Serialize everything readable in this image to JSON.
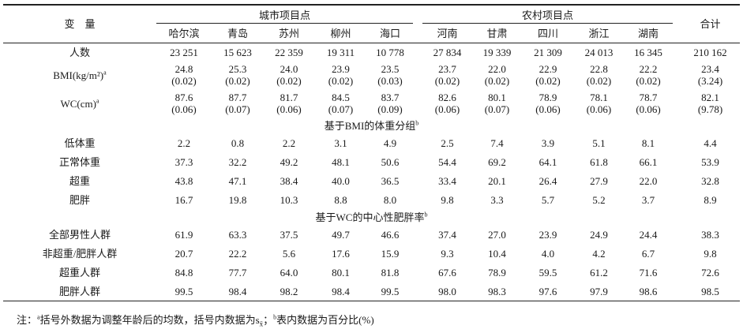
{
  "table": {
    "header": {
      "variable": "变　量",
      "urban_group": "城市项目点",
      "rural_group": "农村项目点",
      "total": "合计",
      "sites": [
        "哈尔滨",
        "青岛",
        "苏州",
        "柳州",
        "海口",
        "河南",
        "甘肃",
        "四川",
        "浙江",
        "湖南"
      ]
    },
    "rows": [
      {
        "type": "single",
        "label": "人数",
        "sup": "",
        "values": [
          "23 251",
          "15 623",
          "22 359",
          "19 311",
          "10 778",
          "27 834",
          "19 339",
          "21 309",
          "24 013",
          "16 345",
          "210 162"
        ]
      },
      {
        "type": "double",
        "label": "BMI(kg/m²)",
        "sup": "a",
        "values": [
          "24.8",
          "25.3",
          "24.0",
          "23.9",
          "23.5",
          "23.7",
          "22.0",
          "22.9",
          "22.8",
          "22.2",
          "23.4"
        ],
        "errors": [
          "(0.02)",
          "(0.02)",
          "(0.02)",
          "(0.02)",
          "(0.03)",
          "(0.02)",
          "(0.02)",
          "(0.02)",
          "(0.02)",
          "(0.02)",
          "(3.24)"
        ]
      },
      {
        "type": "double",
        "label": "WC(cm)",
        "sup": "a",
        "values": [
          "87.6",
          "87.7",
          "81.7",
          "84.5",
          "83.7",
          "82.6",
          "80.1",
          "78.9",
          "78.1",
          "78.7",
          "82.1"
        ],
        "errors": [
          "(0.06)",
          "(0.07)",
          "(0.06)",
          "(0.07)",
          "(0.09)",
          "(0.06)",
          "(0.07)",
          "(0.06)",
          "(0.06)",
          "(0.06)",
          "(9.78)"
        ]
      },
      {
        "type": "group",
        "label": "基于BMI的体重分组",
        "sup": "b"
      },
      {
        "type": "sub",
        "label": "低体重",
        "values": [
          "2.2",
          "0.8",
          "2.2",
          "3.1",
          "4.9",
          "2.5",
          "7.4",
          "3.9",
          "5.1",
          "8.1",
          "4.4"
        ]
      },
      {
        "type": "sub",
        "label": "正常体重",
        "values": [
          "37.3",
          "32.2",
          "49.2",
          "48.1",
          "50.6",
          "54.4",
          "69.2",
          "64.1",
          "61.8",
          "66.1",
          "53.9"
        ]
      },
      {
        "type": "sub",
        "label": "超重",
        "values": [
          "43.8",
          "47.1",
          "38.4",
          "40.0",
          "36.5",
          "33.4",
          "20.1",
          "26.4",
          "27.9",
          "22.0",
          "32.8"
        ]
      },
      {
        "type": "sub",
        "label": "肥胖",
        "values": [
          "16.7",
          "19.8",
          "10.3",
          "8.8",
          "8.0",
          "9.8",
          "3.3",
          "5.7",
          "5.2",
          "3.7",
          "8.9"
        ]
      },
      {
        "type": "group",
        "label": "基于WC的中心性肥胖率",
        "sup": "b"
      },
      {
        "type": "sub",
        "label": "全部男性人群",
        "values": [
          "61.9",
          "63.3",
          "37.5",
          "49.7",
          "46.6",
          "37.4",
          "27.0",
          "23.9",
          "24.9",
          "24.4",
          "38.3"
        ]
      },
      {
        "type": "sub",
        "label": "非超重/肥胖人群",
        "values": [
          "20.7",
          "22.2",
          "5.6",
          "17.6",
          "15.9",
          "9.3",
          "10.4",
          "4.0",
          "4.2",
          "6.7",
          "9.8"
        ]
      },
      {
        "type": "sub",
        "label": "超重人群",
        "values": [
          "84.8",
          "77.7",
          "64.0",
          "80.1",
          "81.8",
          "67.6",
          "78.9",
          "59.5",
          "61.2",
          "71.6",
          "72.6"
        ]
      },
      {
        "type": "sub",
        "label": "肥胖人群",
        "values": [
          "99.5",
          "98.4",
          "98.2",
          "98.4",
          "99.5",
          "98.0",
          "98.3",
          "97.6",
          "97.9",
          "98.6",
          "98.5"
        ]
      }
    ]
  },
  "note": {
    "prefix": "注：",
    "sup_a": "a",
    "text_a": "括号外数据为调整年龄后的均数，括号内数据为s",
    "sub_x": "x̄",
    "sep": "；",
    "sup_b": "b",
    "text_b": "表内数据为百分比(%)"
  }
}
